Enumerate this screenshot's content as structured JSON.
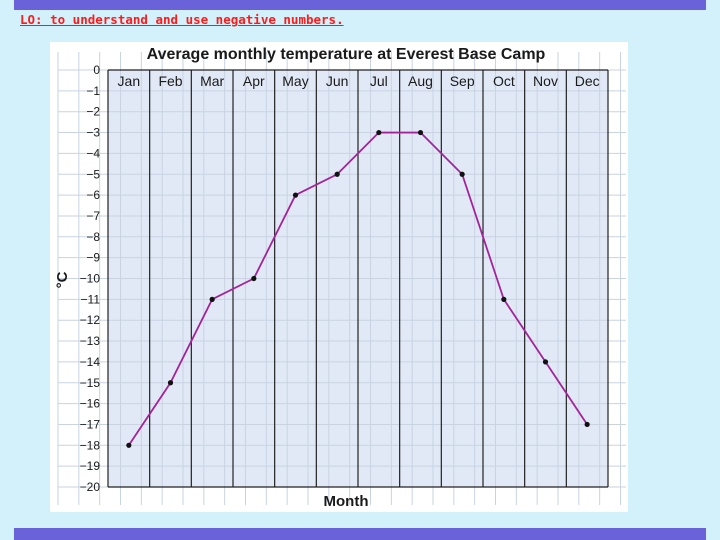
{
  "header": {
    "learning_objective": "LO: to understand and use negative numbers."
  },
  "colors": {
    "banner": "#6a62d8",
    "background": "#d2f1fb",
    "plot_fill": "#e1e9f6",
    "line": "#a3249a",
    "objective_text": "#ff1a1a"
  },
  "chart_data": {
    "type": "line",
    "title": "Average monthly temperature at Everest Base Camp",
    "xlabel": "Month",
    "ylabel": "°C",
    "categories": [
      "Jan",
      "Feb",
      "Mar",
      "Apr",
      "May",
      "Jun",
      "Jul",
      "Aug",
      "Sep",
      "Oct",
      "Nov",
      "Dec"
    ],
    "values": [
      -18,
      -15,
      -11,
      -10,
      -6,
      -5,
      -3,
      -3,
      -5,
      -11,
      -14,
      -17
    ],
    "y_ticks": [
      "0",
      "−1",
      "−2",
      "−3",
      "−4",
      "−5",
      "−6",
      "−7",
      "−8",
      "−9",
      "−10",
      "−11",
      "−12",
      "−13",
      "−14",
      "−15",
      "−16",
      "−17",
      "−18",
      "−19",
      "−20"
    ],
    "ylim": [
      -20,
      0
    ],
    "grid": true,
    "legend": "none"
  }
}
